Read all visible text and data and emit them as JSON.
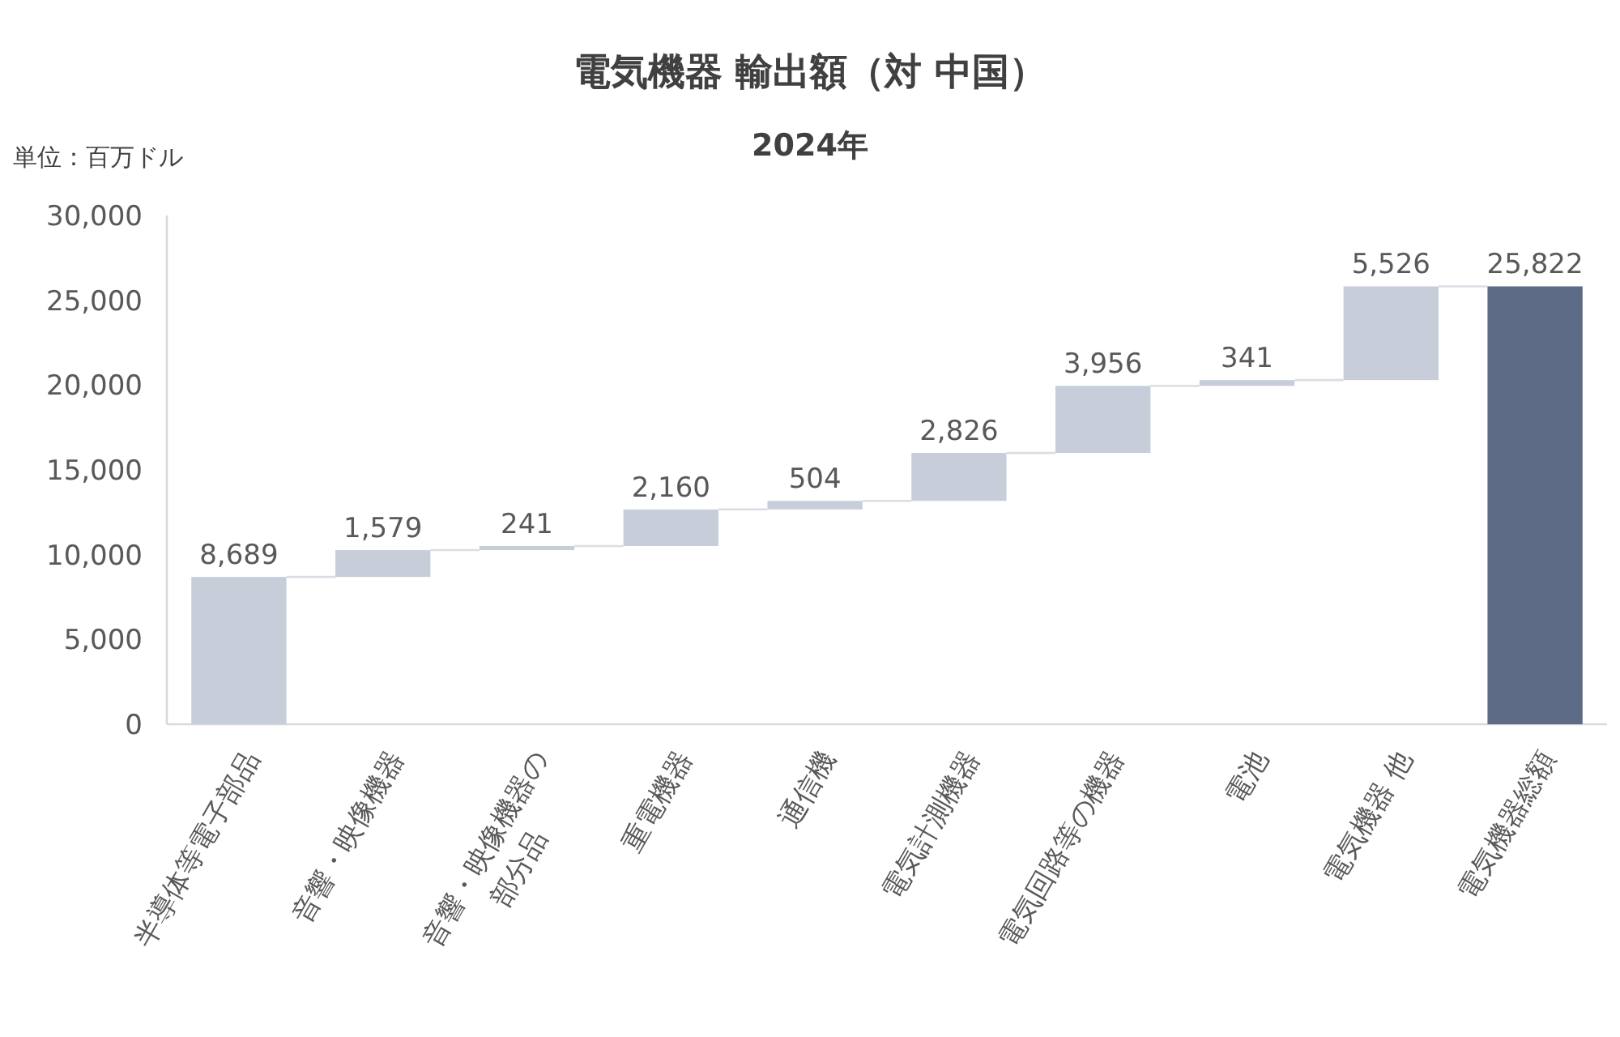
{
  "chart_data": {
    "type": "bar",
    "title": "電気機器 輸出額（対 中国）",
    "subtitle": "2024年",
    "ylabel": "単位：百万ドル",
    "categories": [
      "半導体等電子部品",
      "音響・映像機器",
      "音響・映像機器の部分品",
      "重電機器",
      "通信機",
      "電気計測機器",
      "電気回路等の機器",
      "電池",
      "電気機器 他",
      "電気機器総額"
    ],
    "values": [
      8689,
      1579,
      241,
      2160,
      504,
      2826,
      3956,
      341,
      5526,
      25822
    ],
    "base": [
      0,
      8689,
      10268,
      10509,
      12669,
      13173,
      15999,
      19955,
      20296,
      0
    ],
    "colors": [
      "#c8ced9",
      "#c8ced9",
      "#c8ced9",
      "#c8ced9",
      "#c8ced9",
      "#c8ced9",
      "#c8ced9",
      "#c8ced9",
      "#c8ced9",
      "#5e6b87"
    ],
    "value_labels": [
      "8,689",
      "1,579",
      "241",
      "2,160",
      "504",
      "2,826",
      "3,956",
      "341",
      "5,526",
      "25,822"
    ],
    "ylim": [
      0,
      30000
    ],
    "yticks": [
      0,
      {
        "value": 5000,
        "label": "5,000"
      },
      {
        "value": 10000,
        "label": "10,000"
      },
      {
        "value": 15000,
        "label": "15,000"
      },
      {
        "value": 20000,
        "label": "20,000"
      },
      {
        "value": 25000,
        "label": "25,000"
      },
      {
        "value": 30000,
        "label": "30,000"
      }
    ]
  }
}
